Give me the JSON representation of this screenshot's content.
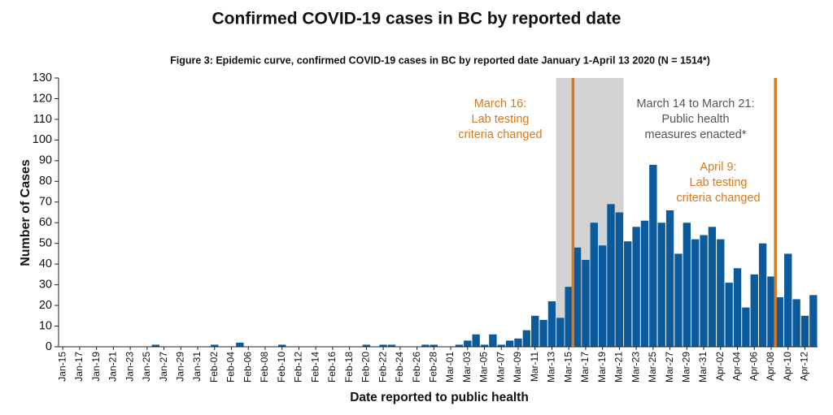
{
  "chart_data": {
    "type": "bar",
    "title": "Confirmed COVID-19 cases in BC by reported date",
    "subtitle": "Figure 3: Epidemic curve, confirmed COVID-19 cases in BC by reported date January 1-April 13 2020 (N = 1514*)",
    "x_label": "Date reported to public health",
    "y_label": "Number of Cases",
    "color": "#0b5a9c",
    "categories": [
      "Jan-15",
      null,
      "Jan-17",
      null,
      "Jan-19",
      null,
      "Jan-21",
      null,
      "Jan-23",
      null,
      "Jan-25",
      null,
      "Jan-27",
      null,
      "Jan-29",
      null,
      "Jan-31",
      null,
      "Feb-02",
      null,
      "Feb-04",
      null,
      "Feb-06",
      null,
      "Feb-08",
      null,
      "Feb-10",
      null,
      "Feb-12",
      null,
      "Feb-14",
      null,
      "Feb-16",
      null,
      "Feb-18",
      null,
      "Feb-20",
      null,
      "Feb-22",
      null,
      "Feb-24",
      null,
      "Feb-26",
      null,
      "Feb-28",
      null,
      "Mar-01",
      null,
      "Mar-03",
      null,
      "Mar-05",
      null,
      "Mar-07",
      null,
      "Mar-09",
      null,
      "Mar-11",
      null,
      "Mar-13",
      null,
      "Mar-15",
      null,
      "Mar-17",
      null,
      "Mar-19",
      null,
      "Mar-21",
      null,
      "Mar-23",
      null,
      "Mar-25",
      null,
      "Mar-27",
      null,
      "Mar-29",
      null,
      "Mar-31",
      null,
      "Apr-02",
      null,
      "Apr-04",
      null,
      "Apr-06",
      null,
      "Apr-08",
      null,
      "Apr-10",
      null,
      "Apr-12",
      null
    ],
    "values": [
      0,
      0,
      0,
      0,
      0,
      0,
      0,
      0,
      0,
      0,
      0,
      1,
      0,
      0,
      0,
      0,
      0,
      0,
      1,
      0,
      0,
      2,
      0,
      0,
      0,
      0,
      1,
      0,
      0,
      0,
      0,
      0,
      0,
      0,
      0,
      0,
      1,
      0,
      1,
      1,
      0,
      0,
      0,
      1,
      1,
      0,
      0,
      1,
      3,
      6,
      1,
      6,
      1,
      3,
      4,
      8,
      15,
      13,
      22,
      14,
      29,
      48,
      42,
      60,
      49,
      69,
      65,
      51,
      58,
      61,
      88,
      60,
      66,
      45,
      60,
      52,
      54,
      58,
      52,
      31,
      38,
      19,
      35,
      50,
      34,
      24,
      45,
      23,
      15,
      25
    ],
    "ylim": [
      0,
      130
    ],
    "yticks": [
      0,
      10,
      20,
      30,
      40,
      50,
      60,
      70,
      80,
      90,
      100,
      110,
      120,
      130
    ],
    "grid": false,
    "annotations": [
      {
        "lines": [
          "March 16:",
          "Lab testing",
          "criteria changed"
        ],
        "color": "#d9781c"
      },
      {
        "lines": [
          "March 14 to March 21:",
          "Public health",
          "measures enacted*"
        ],
        "color": "#555555"
      },
      {
        "lines": [
          "April 9:",
          "Lab testing",
          "criteria changed"
        ],
        "color": "#d9781c"
      }
    ]
  }
}
